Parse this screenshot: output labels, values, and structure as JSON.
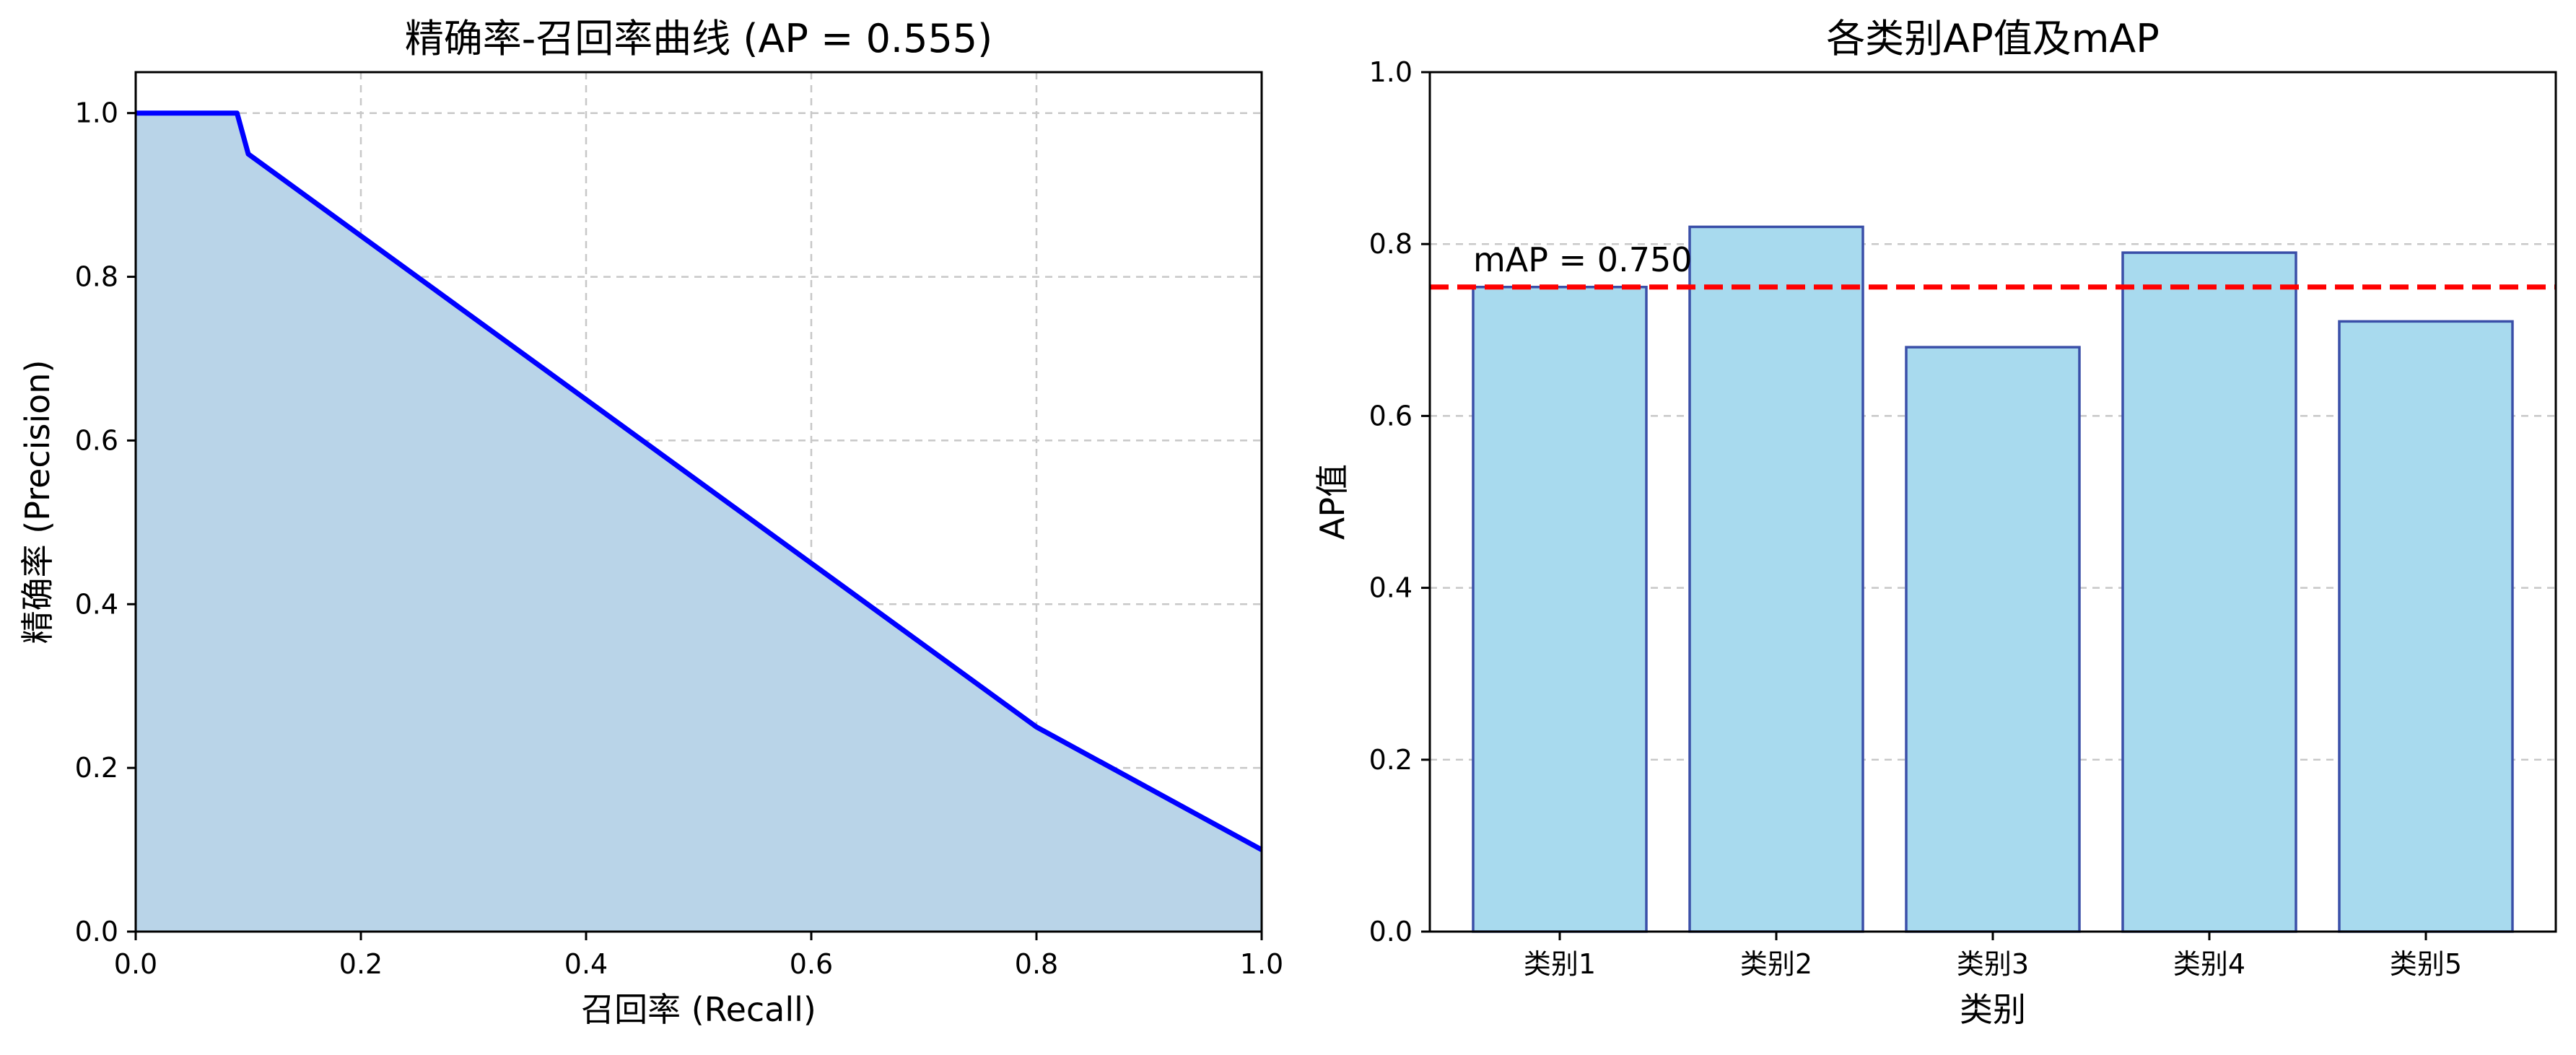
{
  "chart_data": [
    {
      "type": "area",
      "title": "精确率-召回率曲线 (AP = 0.555)",
      "xlabel": "召回率 (Recall)",
      "ylabel": "精确率 (Precision)",
      "xlim": [
        0,
        1
      ],
      "ylim": [
        0,
        1.05
      ],
      "xticks": [
        "0.0",
        "0.2",
        "0.4",
        "0.6",
        "0.8",
        "1.0"
      ],
      "yticks": [
        "0.0",
        "0.2",
        "0.4",
        "0.6",
        "0.8",
        "1.0"
      ],
      "grid": true,
      "series": [
        {
          "x": [
            0.0,
            0.09,
            0.1,
            0.8,
            1.0
          ],
          "y": [
            1.0,
            1.0,
            0.95,
            0.25,
            0.1
          ]
        }
      ],
      "colors": {
        "line": "#0000ff",
        "fill": "#b9d4e8"
      }
    },
    {
      "type": "bar",
      "title": "各类别AP值及mAP",
      "xlabel": "类别",
      "ylabel": "AP值",
      "ylim": [
        0,
        1.0
      ],
      "yticks": [
        "0.0",
        "0.2",
        "0.4",
        "0.6",
        "0.8",
        "1.0"
      ],
      "grid": true,
      "categories": [
        "类别1",
        "类别2",
        "类别3",
        "类别4",
        "类别5"
      ],
      "values": [
        0.75,
        0.82,
        0.68,
        0.79,
        0.71
      ],
      "reference_line": {
        "value": 0.75,
        "label": "mAP = 0.750",
        "color": "#ff0000",
        "style": "dashed"
      },
      "colors": {
        "bar_fill": "#a8daee",
        "bar_edge": "#3a4fa8"
      }
    }
  ]
}
